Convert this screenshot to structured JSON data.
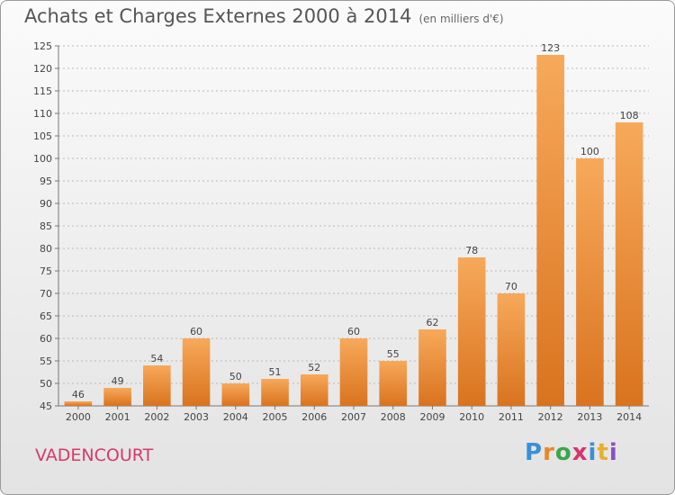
{
  "title": "Achats et Charges Externes 2000 à 2014",
  "unit_label": "(en milliers d'€)",
  "commune": "VADENCOURT",
  "logo": {
    "letters": [
      "P",
      "r",
      "o",
      "x",
      "i",
      "t",
      "i"
    ],
    "colors": [
      "#3a8fd6",
      "#e8872a",
      "#3aa64a",
      "#d6336c",
      "#3a8fd6",
      "#e8b02a",
      "#8a4fc6"
    ]
  },
  "colors": {
    "bar_light": "#f7a95a",
    "bar_dark": "#d9731f",
    "grid": "#b8b8b8"
  },
  "chart_data": {
    "type": "bar",
    "title": "Achats et Charges Externes 2000 à 2014",
    "xlabel": "",
    "ylabel": "",
    "categories": [
      "2000",
      "2001",
      "2002",
      "2003",
      "2004",
      "2005",
      "2006",
      "2007",
      "2008",
      "2009",
      "2010",
      "2011",
      "2012",
      "2013",
      "2014"
    ],
    "values": [
      46,
      49,
      54,
      60,
      50,
      51,
      52,
      60,
      55,
      62,
      78,
      70,
      123,
      100,
      108
    ],
    "ylim": [
      45,
      125
    ],
    "yticks": [
      45,
      50,
      55,
      60,
      65,
      70,
      75,
      80,
      85,
      90,
      95,
      100,
      105,
      110,
      115,
      120,
      125
    ],
    "grid": true,
    "data_labels": true
  }
}
